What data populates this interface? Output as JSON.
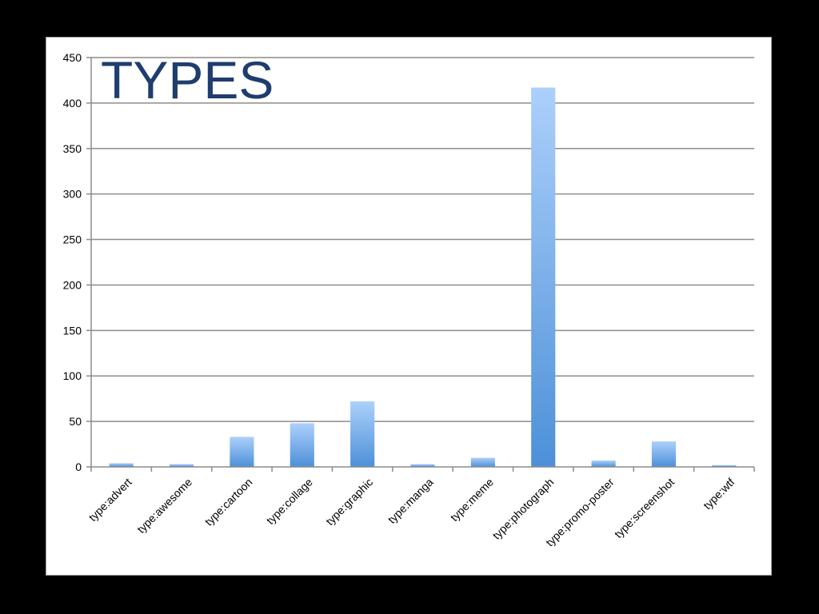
{
  "chart_data": {
    "type": "bar",
    "title": "TYPES",
    "xlabel": "",
    "ylabel": "",
    "ylim": [
      0,
      450
    ],
    "yticks": [
      0,
      50,
      100,
      150,
      200,
      250,
      300,
      350,
      400,
      450
    ],
    "grid": true,
    "legend": "none",
    "categories": [
      "type:advert",
      "type:awesome",
      "type:cartoon",
      "type:collage",
      "type:graphic",
      "type:manga",
      "type:meme",
      "type:photograph",
      "type:promo-poster",
      "type:screenshot",
      "type:wtf"
    ],
    "values": [
      4,
      3,
      33,
      48,
      72,
      3,
      10,
      417,
      7,
      28,
      2
    ],
    "colors": {
      "bar_top": "#acd0fb",
      "bar_bottom": "#4d90d8",
      "grid": "#8c8c8c",
      "title": "#1f3d6e"
    }
  }
}
